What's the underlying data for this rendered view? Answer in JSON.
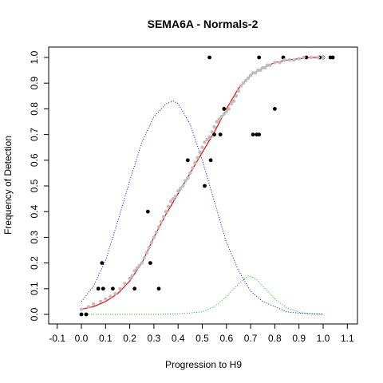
{
  "chart_data": {
    "type": "scatter",
    "title": "SEMA6A - Normals-2",
    "xlabel": "Progression to H9",
    "ylabel": "Frequency of Detection",
    "xlim": [
      -0.1,
      1.1
    ],
    "ylim": [
      0.0,
      1.0
    ],
    "x_ticks": [
      "-0.1",
      "0.0",
      "0.1",
      "0.2",
      "0.3",
      "0.4",
      "0.5",
      "0.6",
      "0.7",
      "0.8",
      "0.9",
      "1.0",
      "1.1"
    ],
    "y_ticks": [
      "0.0",
      "0.1",
      "0.2",
      "0.3",
      "0.4",
      "0.5",
      "0.6",
      "0.7",
      "0.8",
      "0.9",
      "1.0"
    ],
    "grid": false,
    "series": [
      {
        "marker": "point",
        "color": "#000000",
        "points": [
          [
            0.0,
            0.0
          ],
          [
            0.02,
            0.0
          ],
          [
            0.07,
            0.1
          ],
          [
            0.09,
            0.1
          ],
          [
            0.085,
            0.2
          ],
          [
            0.13,
            0.1
          ],
          [
            0.22,
            0.1
          ],
          [
            0.275,
            0.4
          ],
          [
            0.285,
            0.2
          ],
          [
            0.32,
            0.1
          ],
          [
            0.44,
            0.6
          ],
          [
            0.51,
            0.5
          ],
          [
            0.53,
            1.0
          ],
          [
            0.535,
            0.6
          ],
          [
            0.55,
            0.7
          ],
          [
            0.575,
            0.7
          ],
          [
            0.59,
            0.8
          ],
          [
            0.71,
            0.7
          ],
          [
            0.725,
            0.7
          ],
          [
            0.735,
            0.7
          ],
          [
            0.735,
            1.0
          ],
          [
            0.8,
            0.8
          ],
          [
            0.835,
            1.0
          ],
          [
            0.93,
            1.0
          ],
          [
            0.985,
            1.0
          ],
          [
            1.0,
            1.0
          ],
          [
            1.03,
            1.0
          ],
          [
            1.04,
            1.0
          ]
        ]
      },
      {
        "marker": "point",
        "color": "#bebebe",
        "points": [
          [
            0.0,
            0.02
          ],
          [
            0.03,
            0.03
          ],
          [
            0.05,
            0.04
          ],
          [
            0.08,
            0.05
          ],
          [
            0.1,
            0.06
          ],
          [
            0.12,
            0.07
          ],
          [
            0.14,
            0.08
          ],
          [
            0.16,
            0.1
          ],
          [
            0.18,
            0.12
          ],
          [
            0.2,
            0.14
          ],
          [
            0.21,
            0.15
          ],
          [
            0.22,
            0.17
          ],
          [
            0.23,
            0.18
          ],
          [
            0.24,
            0.19
          ],
          [
            0.25,
            0.2
          ],
          [
            0.26,
            0.22
          ],
          [
            0.27,
            0.24
          ],
          [
            0.28,
            0.26
          ],
          [
            0.29,
            0.28
          ],
          [
            0.3,
            0.3
          ],
          [
            0.31,
            0.32
          ],
          [
            0.32,
            0.34
          ],
          [
            0.33,
            0.36
          ],
          [
            0.34,
            0.38
          ],
          [
            0.35,
            0.4
          ],
          [
            0.36,
            0.42
          ],
          [
            0.37,
            0.44
          ],
          [
            0.38,
            0.45
          ],
          [
            0.39,
            0.46
          ],
          [
            0.4,
            0.48
          ],
          [
            0.41,
            0.49
          ],
          [
            0.42,
            0.5
          ],
          [
            0.43,
            0.52
          ],
          [
            0.44,
            0.53
          ],
          [
            0.45,
            0.55
          ],
          [
            0.46,
            0.57
          ],
          [
            0.47,
            0.59
          ],
          [
            0.48,
            0.61
          ],
          [
            0.49,
            0.63
          ],
          [
            0.5,
            0.65
          ],
          [
            0.51,
            0.67
          ],
          [
            0.52,
            0.68
          ],
          [
            0.53,
            0.69
          ],
          [
            0.54,
            0.71
          ],
          [
            0.55,
            0.73
          ],
          [
            0.56,
            0.75
          ],
          [
            0.57,
            0.76
          ],
          [
            0.58,
            0.77
          ],
          [
            0.59,
            0.78
          ],
          [
            0.6,
            0.79
          ],
          [
            0.61,
            0.8
          ],
          [
            0.62,
            0.82
          ],
          [
            0.63,
            0.83
          ],
          [
            0.64,
            0.85
          ],
          [
            0.65,
            0.87
          ],
          [
            0.66,
            0.89
          ],
          [
            0.67,
            0.9
          ],
          [
            0.68,
            0.91
          ],
          [
            0.69,
            0.92
          ],
          [
            0.7,
            0.93
          ],
          [
            0.71,
            0.94
          ],
          [
            0.72,
            0.94
          ],
          [
            0.73,
            0.95
          ],
          [
            0.74,
            0.95
          ],
          [
            0.75,
            0.96
          ],
          [
            0.76,
            0.96
          ],
          [
            0.77,
            0.97
          ],
          [
            0.78,
            0.97
          ],
          [
            0.8,
            0.98
          ],
          [
            0.82,
            0.98
          ],
          [
            0.84,
            0.99
          ],
          [
            0.86,
            0.99
          ],
          [
            0.88,
            0.99
          ],
          [
            0.9,
            0.995
          ],
          [
            0.92,
            1.0
          ],
          [
            0.95,
            1.0
          ],
          [
            0.98,
            1.0
          ],
          [
            1.0,
            1.0
          ]
        ]
      }
    ],
    "curves": [
      {
        "name": "",
        "color": "#ff0000",
        "style": "solid",
        "points": [
          [
            0.0,
            0.02
          ],
          [
            0.05,
            0.03
          ],
          [
            0.1,
            0.05
          ],
          [
            0.15,
            0.08
          ],
          [
            0.2,
            0.13
          ],
          [
            0.25,
            0.2
          ],
          [
            0.3,
            0.3
          ],
          [
            0.35,
            0.39
          ],
          [
            0.4,
            0.47
          ],
          [
            0.45,
            0.55
          ],
          [
            0.5,
            0.63
          ],
          [
            0.55,
            0.71
          ],
          [
            0.6,
            0.8
          ],
          [
            0.65,
            0.88
          ],
          [
            0.7,
            0.93
          ],
          [
            0.75,
            0.96
          ],
          [
            0.8,
            0.98
          ],
          [
            0.85,
            0.99
          ],
          [
            0.9,
            0.995
          ],
          [
            0.95,
            1.0
          ],
          [
            1.0,
            1.0
          ]
        ]
      },
      {
        "name": "",
        "color": "#0000ff",
        "style": "dotted",
        "points": [
          [
            0.0,
            0.05
          ],
          [
            0.05,
            0.11
          ],
          [
            0.1,
            0.21
          ],
          [
            0.15,
            0.36
          ],
          [
            0.2,
            0.52
          ],
          [
            0.25,
            0.67
          ],
          [
            0.3,
            0.77
          ],
          [
            0.35,
            0.82
          ],
          [
            0.38,
            0.83
          ],
          [
            0.4,
            0.82
          ],
          [
            0.45,
            0.74
          ],
          [
            0.5,
            0.6
          ],
          [
            0.55,
            0.44
          ],
          [
            0.6,
            0.28
          ],
          [
            0.65,
            0.17
          ],
          [
            0.7,
            0.09
          ],
          [
            0.75,
            0.05
          ],
          [
            0.8,
            0.03
          ],
          [
            0.85,
            0.01
          ],
          [
            0.9,
            0.005
          ],
          [
            1.0,
            0.001
          ]
        ]
      },
      {
        "name": "",
        "color": "#00cc00",
        "style": "dotted",
        "points": [
          [
            0.0,
            0.0
          ],
          [
            0.3,
            0.0
          ],
          [
            0.4,
            0.002
          ],
          [
            0.5,
            0.01
          ],
          [
            0.55,
            0.03
          ],
          [
            0.6,
            0.07
          ],
          [
            0.65,
            0.12
          ],
          [
            0.69,
            0.15
          ],
          [
            0.72,
            0.14
          ],
          [
            0.75,
            0.11
          ],
          [
            0.8,
            0.06
          ],
          [
            0.85,
            0.025
          ],
          [
            0.9,
            0.008
          ],
          [
            0.95,
            0.002
          ],
          [
            1.0,
            0.0
          ]
        ]
      }
    ]
  }
}
